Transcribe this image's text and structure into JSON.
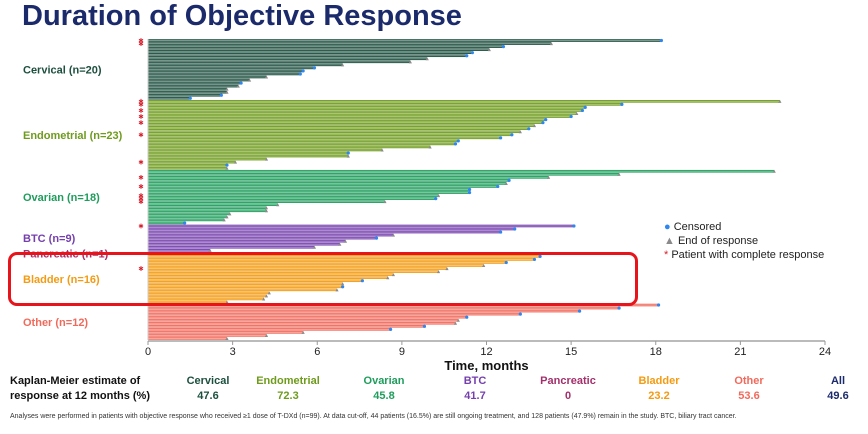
{
  "title": "Duration of Objective Response",
  "chart_data": {
    "type": "swimmer",
    "title": "Duration of Objective Response",
    "xlabel": "Time, months",
    "xlim": [
      0,
      24
    ],
    "xticks": [
      0,
      3,
      6,
      9,
      12,
      15,
      18,
      21,
      24
    ],
    "grid": false,
    "legend_position": "right",
    "legend": {
      "censored": "Censored",
      "end": "End of response",
      "cr": "Patient with complete response"
    },
    "groups": [
      {
        "name": "Cervical (n=20)",
        "color": "#1d4f3f",
        "durations": [
          18.2,
          14.3,
          12.6,
          12.1,
          11.5,
          11.3,
          9.9,
          9.3,
          6.9,
          5.9,
          5.5,
          5.4,
          4.2,
          3.6,
          3.3,
          3.2,
          2.8,
          2.8,
          2.6,
          1.5
        ],
        "censored": [
          1,
          0,
          1,
          0,
          1,
          1,
          0,
          0,
          0,
          1,
          1,
          1,
          0,
          0,
          1,
          0,
          0,
          0,
          1,
          1
        ],
        "cr": [
          1,
          1,
          0,
          0,
          0,
          0,
          0,
          0,
          0,
          0,
          0,
          0,
          0,
          0,
          0,
          0,
          0,
          0,
          0,
          0
        ]
      },
      {
        "name": "Endometrial (n=23)",
        "color": "#6e9b1c",
        "durations": [
          22.4,
          16.8,
          15.5,
          15.4,
          15.2,
          15.0,
          14.1,
          14.0,
          13.7,
          13.5,
          13.2,
          12.9,
          12.5,
          11.0,
          10.9,
          10.0,
          8.3,
          7.1,
          7.1,
          4.2,
          3.1,
          2.8,
          2.8
        ],
        "censored": [
          0,
          1,
          1,
          1,
          0,
          1,
          1,
          1,
          0,
          1,
          0,
          1,
          1,
          1,
          1,
          0,
          0,
          1,
          0,
          0,
          0,
          1,
          0
        ],
        "cr": [
          1,
          1,
          0,
          1,
          0,
          1,
          0,
          1,
          0,
          0,
          0,
          1,
          0,
          0,
          0,
          0,
          0,
          0,
          0,
          0,
          1,
          0,
          0
        ]
      },
      {
        "name": "Ovarian (n=18)",
        "color": "#1f9d5c",
        "durations": [
          22.2,
          16.7,
          14.2,
          12.8,
          12.7,
          12.4,
          11.4,
          11.4,
          10.3,
          10.2,
          8.4,
          4.6,
          4.2,
          4.2,
          2.9,
          2.8,
          2.7,
          1.3
        ],
        "censored": [
          0,
          0,
          0,
          1,
          0,
          1,
          1,
          1,
          0,
          1,
          0,
          0,
          0,
          0,
          0,
          0,
          0,
          1
        ],
        "cr": [
          0,
          0,
          1,
          0,
          0,
          1,
          0,
          0,
          1,
          1,
          1,
          0,
          0,
          0,
          0,
          0,
          0,
          0
        ]
      },
      {
        "name": "BTC (n=9)",
        "color": "#7540ad",
        "durations": [
          15.1,
          13.0,
          12.5,
          8.7,
          8.1,
          7.0,
          6.8,
          5.9,
          2.2
        ],
        "censored": [
          1,
          1,
          1,
          0,
          1,
          0,
          0,
          0,
          0
        ],
        "cr": [
          1,
          0,
          0,
          0,
          0,
          0,
          0,
          0,
          0
        ]
      },
      {
        "name": "Pancreatic (n=1)",
        "color": "#a3306b",
        "durations": [
          4.2
        ],
        "censored": [
          0
        ],
        "cr": [
          0
        ]
      },
      {
        "name": "Bladder (n=16)",
        "color": "#f39b12",
        "durations": [
          13.9,
          13.7,
          12.7,
          11.9,
          10.6,
          10.3,
          8.7,
          8.5,
          7.6,
          6.9,
          6.9,
          6.7,
          4.3,
          4.2,
          4.1,
          2.8
        ],
        "censored": [
          1,
          1,
          1,
          0,
          0,
          0,
          0,
          0,
          1,
          0,
          1,
          0,
          0,
          0,
          0,
          0
        ],
        "cr": [
          0,
          0,
          0,
          0,
          1,
          0,
          0,
          0,
          0,
          0,
          0,
          0,
          0,
          0,
          0,
          0
        ]
      },
      {
        "name": "Other (n=12)",
        "color": "#f06a5c",
        "durations": [
          18.1,
          16.7,
          15.3,
          13.2,
          11.3,
          11.0,
          10.9,
          9.8,
          8.6,
          5.5,
          4.2,
          2.8
        ],
        "censored": [
          1,
          1,
          1,
          1,
          1,
          0,
          0,
          1,
          1,
          0,
          0,
          0
        ],
        "cr": [
          0,
          0,
          0,
          0,
          0,
          0,
          0,
          0,
          0,
          0,
          0,
          0
        ]
      }
    ]
  },
  "km": {
    "label_line1": "Kaplan-Meier estimate of",
    "label_line2": "response at 12 months (%)",
    "items": [
      {
        "name": "Cervical",
        "value": "47.6",
        "color": "#1d4f3f"
      },
      {
        "name": "Endometrial",
        "value": "72.3",
        "color": "#6e9b1c"
      },
      {
        "name": "Ovarian",
        "value": "45.8",
        "color": "#1f9d5c"
      },
      {
        "name": "BTC",
        "value": "41.7",
        "color": "#7540ad"
      },
      {
        "name": "Pancreatic",
        "value": "0",
        "color": "#a3306b"
      },
      {
        "name": "Bladder",
        "value": "23.2",
        "color": "#f39b12"
      },
      {
        "name": "Other",
        "value": "53.6",
        "color": "#f06a5c"
      },
      {
        "name": "All",
        "value": "49.6",
        "color": "#1b2a6b"
      }
    ]
  },
  "footnote": "Analyses were performed in patients with objective response who received ≥1 dose of T-DXd (n=99). At data cut-off, 44 patients (16.5%) are still ongoing treatment, and 128 patients (47.9%) remain in the study. BTC, biliary tract cancer.",
  "colors": {
    "censored": "#2e86f0",
    "end": "#8a8a8a",
    "cr": "#d81e2c",
    "highlight": "#e8141b"
  }
}
